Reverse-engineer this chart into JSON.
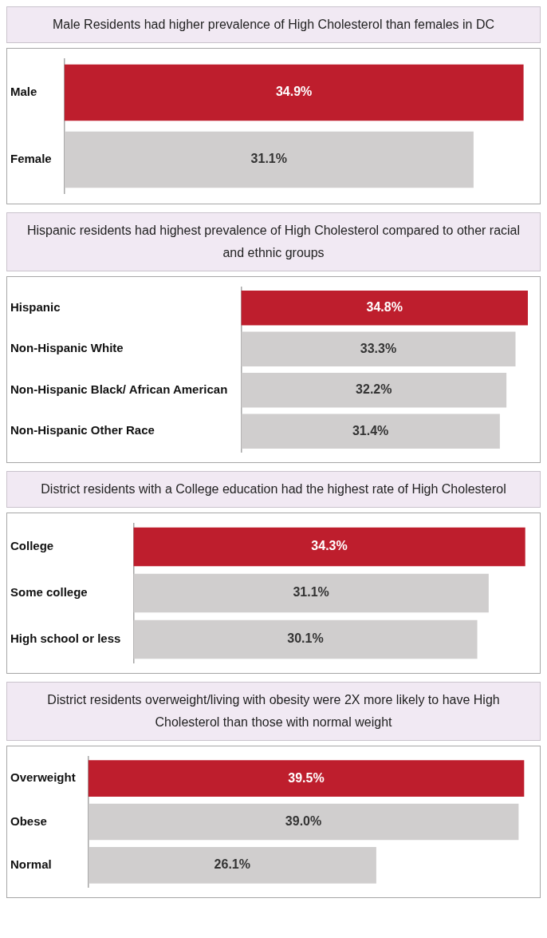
{
  "chart_data": [
    {
      "type": "bar",
      "orientation": "horizontal",
      "title": "Male Residents had higher prevalence of High Cholesterol than females in DC",
      "categories": [
        "Male",
        "Female"
      ],
      "values": [
        34.9,
        31.1
      ],
      "value_labels": [
        "34.9%",
        "31.1%"
      ],
      "colors": [
        "#be1e2d",
        "#d0cece"
      ],
      "tick_labels": "y"
    },
    {
      "type": "bar",
      "orientation": "horizontal",
      "title": "Hispanic residents had highest prevalence of High Cholesterol compared to other racial and ethnic groups",
      "categories": [
        "Hispanic",
        "Non-Hispanic White",
        "Non-Hispanic Black/ African American",
        "Non-Hispanic Other Race"
      ],
      "values": [
        34.8,
        33.3,
        32.2,
        31.4
      ],
      "value_labels": [
        "34.8%",
        "33.3%",
        "32.2%",
        "31.4%"
      ],
      "colors": [
        "#be1e2d",
        "#d0cece",
        "#d0cece",
        "#d0cece"
      ],
      "tick_labels": "y"
    },
    {
      "type": "bar",
      "orientation": "horizontal",
      "title": "District residents with a College education had the highest rate of High Cholesterol",
      "categories": [
        "College",
        "Some college",
        "High school or less"
      ],
      "values": [
        34.3,
        31.1,
        30.1
      ],
      "value_labels": [
        "34.3%",
        "31.1%",
        "30.1%"
      ],
      "colors": [
        "#be1e2d",
        "#d0cece",
        "#d0cece"
      ],
      "tick_labels": "y"
    },
    {
      "type": "bar",
      "orientation": "horizontal",
      "title": "District residents overweight/living with obesity were 2X more likely to have High Cholesterol than those with normal weight",
      "categories": [
        "Overweight",
        "Obese",
        "Normal"
      ],
      "values": [
        39.5,
        39.0,
        26.1
      ],
      "value_labels": [
        "39.5%",
        "39.0%",
        "26.1%"
      ],
      "colors": [
        "#be1e2d",
        "#d0cece",
        "#d0cece"
      ],
      "tick_labels": "y"
    }
  ]
}
